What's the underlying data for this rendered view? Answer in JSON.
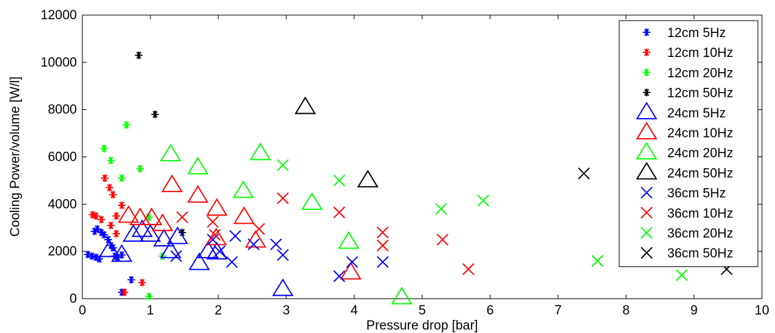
{
  "chart_data": {
    "type": "scatter",
    "title": "",
    "xlabel": "Pressure drop [bar]",
    "ylabel": "Cooling Power/volume [W/l]",
    "xlim": [
      0,
      10
    ],
    "ylim": [
      0,
      12000
    ],
    "x_ticks": [
      "0",
      "1",
      "2",
      "3",
      "4",
      "5",
      "6",
      "7",
      "8",
      "9",
      "10"
    ],
    "y_ticks": [
      "0",
      "2000",
      "4000",
      "6000",
      "8000",
      "10000",
      "12000"
    ],
    "grid": false,
    "legend_position": "top-right",
    "series": [
      {
        "name": "12cm 5Hz",
        "marker": "asterisk",
        "color": "#0000ff",
        "x": [
          0.08,
          0.14,
          0.2,
          0.25,
          0.18,
          0.22,
          0.28,
          0.32,
          0.38,
          0.42,
          0.45,
          0.48,
          0.52,
          0.58,
          0.72,
          0.58
        ],
        "y": [
          1870,
          1800,
          1750,
          1680,
          2850,
          2950,
          2800,
          2700,
          2500,
          2250,
          2150,
          1800,
          1750,
          1850,
          800,
          270
        ]
      },
      {
        "name": "12cm 10Hz",
        "marker": "asterisk",
        "color": "#ff0000",
        "x": [
          0.15,
          0.2,
          0.28,
          0.33,
          0.4,
          0.45,
          0.5,
          0.58,
          0.42,
          0.5,
          0.62,
          0.88
        ],
        "y": [
          3550,
          3500,
          3350,
          5100,
          4700,
          4400,
          3500,
          3950,
          3100,
          2750,
          270,
          680
        ]
      },
      {
        "name": "12cm 20Hz",
        "marker": "asterisk",
        "color": "#00ff00",
        "x": [
          0.32,
          0.42,
          0.58,
          0.65,
          0.85,
          0.98,
          1.18,
          0.98
        ],
        "y": [
          6350,
          5850,
          5100,
          7350,
          5500,
          3450,
          1800,
          100
        ]
      },
      {
        "name": "12cm 50Hz",
        "marker": "asterisk",
        "color": "#000000",
        "x": [
          0.83,
          1.07,
          1.47
        ],
        "y": [
          10300,
          7800,
          2800
        ]
      },
      {
        "name": "24cm 5Hz",
        "marker": "triangle",
        "color": "#0000ff",
        "x": [
          0.4,
          0.58,
          0.75,
          0.88,
          1.0,
          1.2,
          1.3,
          1.4,
          1.72,
          1.85,
          1.98,
          2.95
        ],
        "y": [
          2050,
          1850,
          2700,
          2900,
          2700,
          2500,
          2000,
          2600,
          1500,
          2000,
          1950,
          400
        ]
      },
      {
        "name": "24cm 10Hz",
        "marker": "triangle",
        "color": "#ff0000",
        "x": [
          0.68,
          0.85,
          1.02,
          1.18,
          1.32,
          1.7,
          1.98,
          2.38,
          2.55,
          3.95,
          1.97
        ],
        "y": [
          3500,
          3400,
          3400,
          3150,
          4800,
          4350,
          3800,
          3450,
          2450,
          1100,
          2550
        ]
      },
      {
        "name": "24cm 20Hz",
        "marker": "triangle",
        "color": "#00ff00",
        "x": [
          1.3,
          1.7,
          2.37,
          2.62,
          3.38,
          3.92,
          4.7
        ],
        "y": [
          6100,
          5550,
          4550,
          6150,
          4050,
          2400,
          50
        ]
      },
      {
        "name": "24cm 50Hz",
        "marker": "triangle",
        "color": "#000000",
        "x": [
          3.28,
          4.2
        ],
        "y": [
          8100,
          5000
        ]
      },
      {
        "name": "36cm 5Hz",
        "marker": "x",
        "color": "#0000ff",
        "x": [
          1.38,
          1.92,
          2.02,
          2.2,
          2.25,
          2.52,
          2.85,
          2.95,
          3.78,
          3.97,
          4.42
        ],
        "y": [
          1800,
          2500,
          2000,
          1550,
          2650,
          2300,
          2300,
          1850,
          950,
          1550,
          1550
        ]
      },
      {
        "name": "36cm 10Hz",
        "marker": "x",
        "color": "#ff0000",
        "x": [
          1.47,
          1.92,
          1.95,
          2.6,
          2.95,
          3.78,
          4.42,
          4.42,
          5.3,
          5.68
        ],
        "y": [
          3450,
          3250,
          2700,
          2950,
          4250,
          3650,
          2800,
          2250,
          2500,
          1250
        ]
      },
      {
        "name": "36cm 20Hz",
        "marker": "x",
        "color": "#00ff00",
        "x": [
          2.95,
          3.78,
          5.28,
          5.9,
          7.58,
          8.82
        ],
        "y": [
          5650,
          5000,
          3800,
          4150,
          1600,
          1000
        ]
      },
      {
        "name": "36cm 50Hz",
        "marker": "x",
        "color": "#000000",
        "x": [
          7.38,
          9.48
        ],
        "y": [
          5300,
          1250
        ]
      }
    ]
  }
}
